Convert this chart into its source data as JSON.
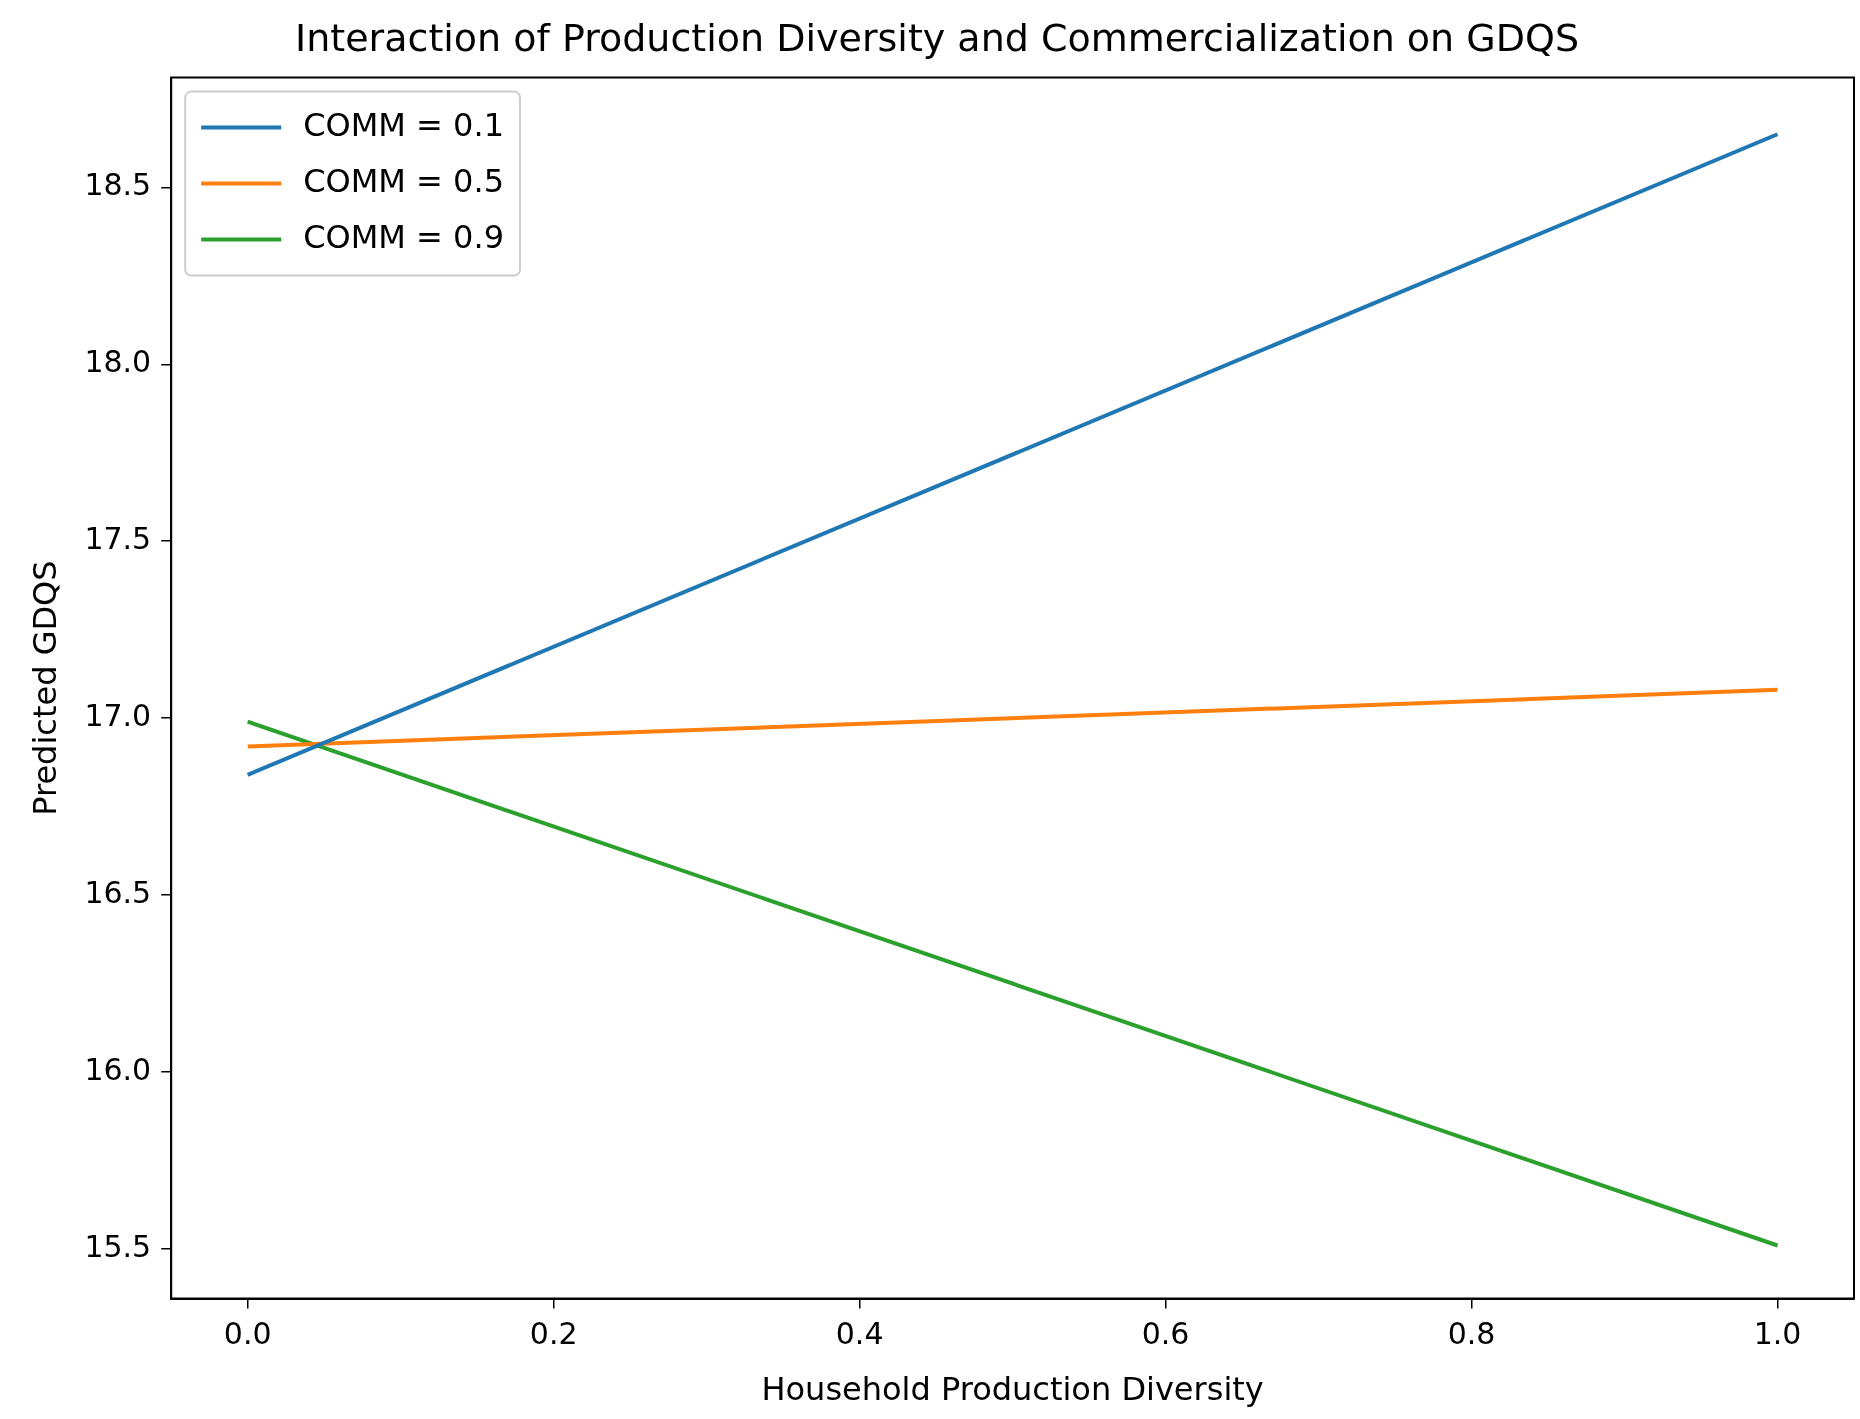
{
  "chart_data": {
    "type": "line",
    "title": "Interaction of Production Diversity and Commercialization on GDQS",
    "xlabel": "Household Production Diversity",
    "ylabel": "Predicted GDQS",
    "x": [
      0,
      1
    ],
    "series": [
      {
        "name": "COMM = 0.1",
        "color": "#1f77b4",
        "values": [
          16.84,
          18.65
        ]
      },
      {
        "name": "COMM = 0.5",
        "color": "#ff7f0e",
        "values": [
          16.92,
          17.08
        ]
      },
      {
        "name": "COMM = 0.9",
        "color": "#2ca02c",
        "values": [
          16.99,
          15.51
        ]
      }
    ],
    "xlim": [
      -0.05,
      1.05
    ],
    "ylim": [
      15.36,
      18.81
    ],
    "xticks": [
      {
        "value": 0,
        "label": "0.0"
      },
      {
        "value": 0.2,
        "label": "0.2"
      },
      {
        "value": 0.4,
        "label": "0.4"
      },
      {
        "value": 0.6,
        "label": "0.6"
      },
      {
        "value": 0.8,
        "label": "0.8"
      },
      {
        "value": 1,
        "label": "1.0"
      }
    ],
    "yticks": [
      {
        "value": 15.5,
        "label": "15.5"
      },
      {
        "value": 16,
        "label": "16.0"
      },
      {
        "value": 16.5,
        "label": "16.5"
      },
      {
        "value": 17,
        "label": "17.0"
      },
      {
        "value": 17.5,
        "label": "17.5"
      },
      {
        "value": 18,
        "label": "18.0"
      },
      {
        "value": 18.5,
        "label": "18.5"
      }
    ],
    "legend": "top left",
    "grid": false,
    "marker": "none",
    "line_style": "solid"
  }
}
